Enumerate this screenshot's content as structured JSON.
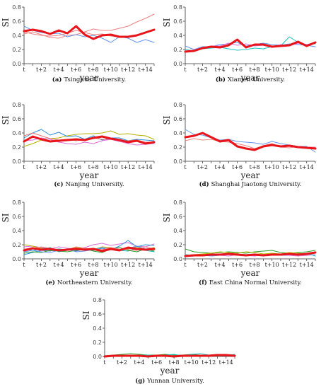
{
  "chart_data": [
    {
      "type": "line",
      "caption_tag": "(a)",
      "caption": "Tsinghua University.",
      "xlabel": "year",
      "ylabel": "SI",
      "ylim": [
        0,
        0.8
      ],
      "yticks": [
        "0.0",
        "0.2",
        "0.4",
        "0.6",
        "0.8"
      ],
      "categories": [
        "t",
        "t+1",
        "t+2",
        "t+3",
        "t+4",
        "t+5",
        "t+6",
        "t+7",
        "t+8",
        "t+9",
        "t+10",
        "t+11",
        "t+12",
        "t+13",
        "t+14",
        "t+15"
      ],
      "xtick_labels": [
        "t",
        "t+2",
        "t+4",
        "t+6",
        "t+8",
        "t+10",
        "t+12",
        "t+14"
      ],
      "series": [
        {
          "color": "#f08080",
          "width": 1,
          "values": [
            0.42,
            0.45,
            0.41,
            0.37,
            0.36,
            0.4,
            0.41,
            0.45,
            0.49,
            0.47,
            0.47,
            0.5,
            0.53,
            0.59,
            0.64,
            0.7
          ]
        },
        {
          "color": "#6495ed",
          "width": 1,
          "values": [
            0.53,
            0.47,
            0.44,
            0.42,
            0.43,
            0.38,
            0.41,
            0.38,
            0.4,
            0.36,
            0.3,
            0.38,
            0.36,
            0.3,
            0.34,
            0.3
          ]
        },
        {
          "color": "#f08080",
          "width": 1,
          "values": [
            0.45,
            0.42,
            0.4,
            0.39,
            0.4,
            0.43,
            0.47,
            0.44,
            0.41,
            0.42,
            0.39,
            0.38,
            0.37,
            0.4,
            0.44,
            0.47
          ]
        },
        {
          "color": "#e8141a",
          "width": 3,
          "values": [
            0.46,
            0.48,
            0.46,
            0.42,
            0.47,
            0.43,
            0.53,
            0.41,
            0.35,
            0.4,
            0.41,
            0.38,
            0.38,
            0.4,
            0.44,
            0.48
          ]
        }
      ]
    },
    {
      "type": "line",
      "caption_tag": "(b)",
      "caption": "Xiamen University.",
      "xlabel": "year",
      "ylabel": "SI",
      "ylim": [
        0,
        0.8
      ],
      "yticks": [
        "0.0",
        "0.2",
        "0.4",
        "0.6",
        "0.8"
      ],
      "categories": [
        "t",
        "t+1",
        "t+2",
        "t+3",
        "t+4",
        "t+5",
        "t+6",
        "t+7",
        "t+8",
        "t+9",
        "t+10",
        "t+11",
        "t+12",
        "t+13",
        "t+14",
        "t+15"
      ],
      "xtick_labels": [
        "t",
        "t+2",
        "t+4",
        "t+6",
        "t+8",
        "t+10",
        "t+12",
        "t+14"
      ],
      "series": [
        {
          "color": "#6495ed",
          "width": 1,
          "values": [
            0.25,
            0.2,
            0.24,
            0.24,
            0.27,
            0.28,
            0.3,
            0.25,
            0.27,
            0.29,
            0.27,
            0.26,
            0.28,
            0.27,
            0.26,
            0.24
          ]
        },
        {
          "color": "#19c3c3",
          "width": 1,
          "values": [
            0.2,
            0.18,
            0.21,
            0.22,
            0.23,
            0.21,
            0.19,
            0.2,
            0.22,
            0.21,
            0.24,
            0.25,
            0.38,
            0.3,
            0.27,
            0.28
          ]
        },
        {
          "color": "#da70d6",
          "width": 1,
          "values": [
            0.18,
            0.19,
            0.22,
            0.25,
            0.25,
            0.29,
            0.26,
            0.28,
            0.25,
            0.26,
            0.23,
            0.27,
            0.25,
            0.29,
            0.27,
            0.3
          ]
        },
        {
          "color": "#e8141a",
          "width": 3,
          "values": [
            0.17,
            0.18,
            0.22,
            0.24,
            0.23,
            0.26,
            0.34,
            0.23,
            0.27,
            0.27,
            0.24,
            0.25,
            0.26,
            0.31,
            0.25,
            0.3
          ]
        }
      ]
    },
    {
      "type": "line",
      "caption_tag": "(c)",
      "caption": "Nanjing University.",
      "xlabel": "year",
      "ylabel": "SI",
      "ylim": [
        0,
        0.8
      ],
      "yticks": [
        "0.0",
        "0.2",
        "0.4",
        "0.6",
        "0.8"
      ],
      "categories": [
        "t",
        "t+1",
        "t+2",
        "t+3",
        "t+4",
        "t+5",
        "t+6",
        "t+7",
        "t+8",
        "t+9",
        "t+10",
        "t+11",
        "t+12",
        "t+13",
        "t+14",
        "t+15"
      ],
      "xtick_labels": [
        "t",
        "t+2",
        "t+4",
        "t+6",
        "t+8",
        "t+10",
        "t+12",
        "t+14"
      ],
      "series": [
        {
          "color": "#b8b000",
          "width": 1,
          "values": [
            0.21,
            0.25,
            0.3,
            0.32,
            0.33,
            0.36,
            0.38,
            0.39,
            0.39,
            0.4,
            0.43,
            0.38,
            0.39,
            0.37,
            0.36,
            0.31
          ]
        },
        {
          "color": "#2b8fd6",
          "width": 1,
          "values": [
            0.33,
            0.4,
            0.45,
            0.37,
            0.41,
            0.35,
            0.36,
            0.31,
            0.36,
            0.3,
            0.33,
            0.33,
            0.29,
            0.31,
            0.3,
            0.29
          ]
        },
        {
          "color": "#e57373",
          "width": 1,
          "values": [
            0.36,
            0.4,
            0.36,
            0.32,
            0.3,
            0.31,
            0.29,
            0.31,
            0.33,
            0.31,
            0.31,
            0.28,
            0.29,
            0.3,
            0.27,
            0.27
          ]
        },
        {
          "color": "#da70d6",
          "width": 1,
          "values": [
            0.29,
            0.3,
            0.33,
            0.31,
            0.27,
            0.25,
            0.24,
            0.27,
            0.25,
            0.29,
            0.31,
            0.28,
            0.25,
            0.23,
            0.24,
            0.25
          ]
        },
        {
          "color": "#e8141a",
          "width": 3,
          "values": [
            0.28,
            0.35,
            0.31,
            0.28,
            0.29,
            0.3,
            0.31,
            0.3,
            0.33,
            0.35,
            0.32,
            0.3,
            0.27,
            0.29,
            0.25,
            0.27
          ]
        }
      ]
    },
    {
      "type": "line",
      "caption_tag": "(d)",
      "caption": "Shanghai Jiaotong University.",
      "xlabel": "year",
      "ylabel": "SI",
      "ylim": [
        0,
        0.8
      ],
      "yticks": [
        "0.0",
        "0.2",
        "0.4",
        "0.6",
        "0.8"
      ],
      "categories": [
        "t",
        "t+1",
        "t+2",
        "t+3",
        "t+4",
        "t+5",
        "t+6",
        "t+7",
        "t+8",
        "t+9",
        "t+10",
        "t+11",
        "t+12",
        "t+13",
        "t+14",
        "t+15"
      ],
      "xtick_labels": [
        "t",
        "t+2",
        "t+4",
        "t+6",
        "t+8",
        "t+10",
        "t+12",
        "t+14"
      ],
      "series": [
        {
          "color": "#6495ed",
          "width": 1,
          "values": [
            0.45,
            0.38,
            0.37,
            0.33,
            0.3,
            0.31,
            0.28,
            0.27,
            0.26,
            0.24,
            0.28,
            0.25,
            0.23,
            0.21,
            0.21,
            0.13
          ]
        },
        {
          "color": "#f08080",
          "width": 1,
          "values": [
            0.29,
            0.32,
            0.3,
            0.31,
            0.28,
            0.27,
            0.25,
            0.22,
            0.18,
            0.22,
            0.25,
            0.2,
            0.19,
            0.21,
            0.2,
            0.2
          ]
        },
        {
          "color": "#e8141a",
          "width": 3,
          "values": [
            0.34,
            0.36,
            0.4,
            0.34,
            0.28,
            0.3,
            0.21,
            0.18,
            0.16,
            0.21,
            0.23,
            0.21,
            0.22,
            0.2,
            0.19,
            0.18
          ]
        }
      ]
    },
    {
      "type": "line",
      "caption_tag": "(e)",
      "caption": "Northeastern University.",
      "xlabel": "year",
      "ylabel": "SI",
      "ylim": [
        0,
        0.8
      ],
      "yticks": [
        "0.0",
        "0.2",
        "0.4",
        "0.6",
        "0.8"
      ],
      "categories": [
        "t",
        "t+1",
        "t+2",
        "t+3",
        "t+4",
        "t+5",
        "t+6",
        "t+7",
        "t+8",
        "t+9",
        "t+10",
        "t+11",
        "t+12",
        "t+13",
        "t+14",
        "t+15"
      ],
      "xtick_labels": [
        "t",
        "t+2",
        "t+4",
        "t+6",
        "t+8",
        "t+10",
        "t+12",
        "t+14"
      ],
      "series": [
        {
          "color": "#da70d6",
          "width": 1,
          "values": [
            0.17,
            0.18,
            0.16,
            0.14,
            0.17,
            0.15,
            0.14,
            0.16,
            0.2,
            0.22,
            0.19,
            0.21,
            0.23,
            0.18,
            0.17,
            0.21
          ]
        },
        {
          "color": "#b8b000",
          "width": 1,
          "values": [
            0.2,
            0.18,
            0.15,
            0.13,
            0.14,
            0.12,
            0.16,
            0.15,
            0.13,
            0.17,
            0.16,
            0.12,
            0.14,
            0.17,
            0.13,
            0.16
          ]
        },
        {
          "color": "#2b8fd6",
          "width": 1,
          "values": [
            0.06,
            0.09,
            0.12,
            0.11,
            0.14,
            0.13,
            0.11,
            0.14,
            0.12,
            0.15,
            0.13,
            0.18,
            0.26,
            0.17,
            0.2,
            0.19
          ]
        },
        {
          "color": "#19c3c3",
          "width": 1,
          "values": [
            0.13,
            0.12,
            0.14,
            0.16,
            0.1,
            0.12,
            0.14,
            0.13,
            0.15,
            0.11,
            0.13,
            0.12,
            0.11,
            0.15,
            0.12,
            0.1
          ]
        },
        {
          "color": "#2ca02c",
          "width": 1,
          "values": [
            0.08,
            0.1,
            0.09,
            0.12,
            0.11,
            0.1,
            0.12,
            0.14,
            0.11,
            0.09,
            0.14,
            0.16,
            0.12,
            0.1,
            0.14,
            0.11
          ]
        },
        {
          "color": "#6495ed",
          "width": 1,
          "values": [
            0.1,
            0.12,
            0.1,
            0.09,
            0.12,
            0.14,
            0.1,
            0.11,
            0.13,
            0.16,
            0.14,
            0.12,
            0.15,
            0.18,
            0.14,
            0.15
          ]
        },
        {
          "color": "#f08080",
          "width": 1,
          "values": [
            0.14,
            0.15,
            0.17,
            0.15,
            0.12,
            0.13,
            0.17,
            0.15,
            0.14,
            0.13,
            0.16,
            0.14,
            0.13,
            0.12,
            0.17,
            0.14
          ]
        },
        {
          "color": "#e8141a",
          "width": 3,
          "values": [
            0.12,
            0.15,
            0.13,
            0.14,
            0.12,
            0.13,
            0.14,
            0.13,
            0.14,
            0.11,
            0.14,
            0.12,
            0.16,
            0.14,
            0.13,
            0.14
          ]
        }
      ]
    },
    {
      "type": "line",
      "caption_tag": "(f)",
      "caption": "East China Normal University.",
      "xlabel": "year",
      "ylabel": "SI",
      "ylim": [
        0,
        0.8
      ],
      "yticks": [
        "0.0",
        "0.2",
        "0.4",
        "0.6",
        "0.8"
      ],
      "categories": [
        "t",
        "t+1",
        "t+2",
        "t+3",
        "t+4",
        "t+5",
        "t+6",
        "t+7",
        "t+8",
        "t+9",
        "t+10",
        "t+11",
        "t+12",
        "t+13",
        "t+14",
        "t+15"
      ],
      "xtick_labels": [
        "t",
        "t+2",
        "t+4",
        "t+6",
        "t+8",
        "t+10",
        "t+12",
        "t+14"
      ],
      "series": [
        {
          "color": "#2ca02c",
          "width": 1,
          "values": [
            0.14,
            0.1,
            0.09,
            0.08,
            0.09,
            0.1,
            0.09,
            0.08,
            0.1,
            0.11,
            0.12,
            0.09,
            0.08,
            0.09,
            0.1,
            0.12
          ]
        },
        {
          "color": "#b8b000",
          "width": 1,
          "values": [
            0.05,
            0.06,
            0.07,
            0.08,
            0.1,
            0.09,
            0.08,
            0.1,
            0.09,
            0.07,
            0.08,
            0.07,
            0.09,
            0.08,
            0.07,
            0.1
          ]
        },
        {
          "color": "#6495ed",
          "width": 1,
          "values": [
            0.03,
            0.04,
            0.05,
            0.04,
            0.05,
            0.06,
            0.05,
            0.06,
            0.05,
            0.05,
            0.06,
            0.05,
            0.05,
            0.06,
            0.05,
            0.06
          ]
        },
        {
          "color": "#da70d6",
          "width": 1,
          "values": [
            0.04,
            0.05,
            0.04,
            0.06,
            0.05,
            0.04,
            0.06,
            0.05,
            0.04,
            0.06,
            0.05,
            0.06,
            0.05,
            0.04,
            0.05,
            0.06
          ]
        },
        {
          "color": "#19c3c3",
          "width": 1,
          "values": [
            0.06,
            0.05,
            0.06,
            0.05,
            0.07,
            0.06,
            0.07,
            0.06,
            0.07,
            0.05,
            0.06,
            0.07,
            0.06,
            0.07,
            0.08,
            0.04
          ]
        },
        {
          "color": "#e8141a",
          "width": 3,
          "values": [
            0.04,
            0.05,
            0.05,
            0.06,
            0.06,
            0.07,
            0.06,
            0.05,
            0.06,
            0.05,
            0.06,
            0.06,
            0.07,
            0.06,
            0.07,
            0.09
          ]
        }
      ]
    },
    {
      "type": "line",
      "caption_tag": "(g)",
      "caption": "Yunnan University.",
      "xlabel": "year",
      "ylabel": "SI",
      "ylim": [
        0,
        0.8
      ],
      "yticks": [
        "0.0",
        "0.2",
        "0.4",
        "0.6",
        "0.8"
      ],
      "categories": [
        "t",
        "t+1",
        "t+2",
        "t+3",
        "t+4",
        "t+5",
        "t+6",
        "t+7",
        "t+8",
        "t+9",
        "t+10",
        "t+11",
        "t+12",
        "t+13",
        "t+14",
        "t+15"
      ],
      "xtick_labels": [
        "t",
        "t+2",
        "t+4",
        "t+6",
        "t+8",
        "t+10",
        "t+12",
        "t+14"
      ],
      "series": [
        {
          "color": "#2ca02c",
          "width": 1,
          "values": [
            0.01,
            0.02,
            0.03,
            0.04,
            0.03,
            0.02,
            0.02,
            0.03,
            0.02,
            0.02,
            0.03,
            0.02,
            0.01,
            0.02,
            0.02,
            0.02
          ]
        },
        {
          "color": "#19c3c3",
          "width": 1,
          "values": [
            0.01,
            0.01,
            0.02,
            0.01,
            0.02,
            0.02,
            0.01,
            0.02,
            0.03,
            0.01,
            0.03,
            0.04,
            0.02,
            0.03,
            0.01,
            0.03
          ]
        },
        {
          "color": "#e8141a",
          "width": 3,
          "values": [
            0.0,
            0.01,
            0.01,
            0.01,
            0.01,
            0.0,
            0.01,
            0.01,
            0.0,
            0.01,
            0.01,
            0.01,
            0.01,
            0.02,
            0.02,
            0.01
          ]
        }
      ]
    }
  ]
}
